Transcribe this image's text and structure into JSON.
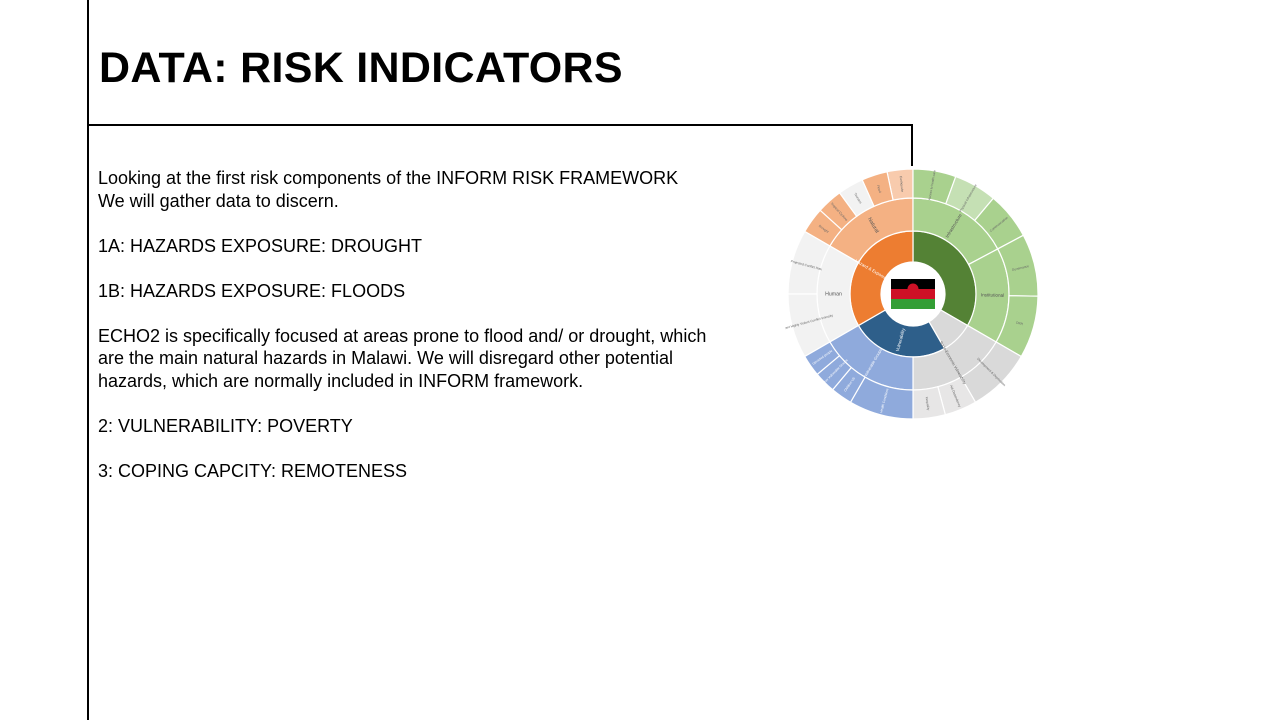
{
  "slide": {
    "title": "DATA: RISK INDICATORS",
    "body": {
      "intro_line1": "Looking at the first risk components of the INFORM RISK FRAMEWORK",
      "intro_line2": "We will gather data to discern.",
      "item_1a": "1A: HAZARDS EXPOSURE: DROUGHT",
      "item_1b": "1B: HAZARDS EXPOSURE: FLOODS",
      "echo_paragraph": "ECHO2 is specifically focused at areas prone to flood and/ or drought, which are the main natural hazards in Malawi.  We will disregard other potential hazards, which are normally included in INFORM framework.",
      "item_2": "2: VULNERABILITY: POVERTY",
      "item_3": "3: COPING CAPCITY: REMOTENESS"
    }
  },
  "diagram": {
    "colors": {
      "hazard_inner": "#ED7D31",
      "hazard_middle": "#F4B183",
      "hazard_outer": "#F8CBAD",
      "coping_inner": "#548235",
      "coping_middle": "#A9D18E",
      "coping_outer": "#C5E0B4",
      "vuln_inner": "#2E5F8A",
      "vuln_middle": "#8FAADC",
      "vuln_outer": "#B4C7E7",
      "socio_inner": "#D9D9D9",
      "socio_outer": "#E7E6E6",
      "human_ring": "#F2F2F2",
      "flag_black": "#000000",
      "flag_red": "#CE1126",
      "flag_green": "#339E35"
    },
    "inner_labels": {
      "hazard": "Hazard & Exposure",
      "vulnerability": "Vulnerability"
    },
    "middle_labels": {
      "natural": "Natural",
      "human": "Human",
      "infrastructure": "Infrastructure",
      "institutional": "Institutional",
      "socio_economic": "Socio-Economic Vulnerability",
      "vulnerable_groups": "Vulnerable Groups"
    },
    "outer_labels": {
      "drought": "Drought",
      "tropical_cyclone": "Tropical Cyclone",
      "tsunami": "Tsunami",
      "flood": "Flood",
      "earthquake": "Earthquake",
      "projected_conflict_risk": "Projected Conflict Risk",
      "current_conflict_intensity": "Current Highly Violent Conflict Intensity",
      "access_to_health_care": "Access to health care",
      "physical_infrastructure": "Physical Infrastructure",
      "communication": "Communication",
      "governance": "Governance",
      "drr": "DRR",
      "development_deprivation": "Development & Deprivation",
      "aid_dependency": "Aid Dependency",
      "inequality": "Inequality",
      "uprooted_people": "Uprooted people",
      "other_vulnerable_groups": "Other Vulnerable Groups",
      "children_u5": "Children U5",
      "health_conditions": "Health Conditions"
    },
    "center": {
      "flag": "Malawi flag"
    }
  }
}
